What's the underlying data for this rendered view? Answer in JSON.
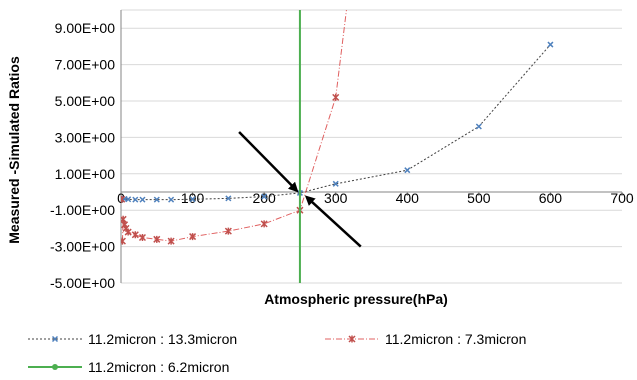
{
  "chart_data": {
    "type": "scatter",
    "title": "",
    "xlabel": "Atmospheric pressure(hPa)",
    "ylabel": "Measured -Simulated Ratios",
    "xlim": [
      0,
      700
    ],
    "ylim": [
      -5,
      10
    ],
    "x_ticks": [
      "0",
      "100",
      "200",
      "300",
      "400",
      "500",
      "600",
      "700"
    ],
    "y_ticks": [
      "-5.00E+00",
      "-3.00E+00",
      "-1.00E+00",
      "1.00E+00",
      "3.00E+00",
      "5.00E+00",
      "7.00E+00",
      "9.00E+00"
    ],
    "grid": true,
    "legend_position": "bottom",
    "series": [
      {
        "name": "11.2micron : 13.3micron",
        "color": "#4f81bd",
        "line_color": "#404040",
        "marker": "x",
        "x": [
          1,
          5,
          10,
          20,
          30,
          50,
          70,
          100,
          150,
          200,
          250,
          300,
          400,
          500,
          600
        ],
        "y": [
          -0.4,
          -0.38,
          -0.4,
          -0.42,
          -0.42,
          -0.42,
          -0.42,
          -0.4,
          -0.35,
          -0.25,
          -0.05,
          0.45,
          1.2,
          3.6,
          8.1
        ]
      },
      {
        "name": "11.2micron : 7.3micron",
        "color": "#c0504d",
        "line_color": "#e06060",
        "marker": "*",
        "x": [
          1,
          2,
          3,
          5,
          7,
          10,
          20,
          30,
          50,
          70,
          100,
          150,
          200,
          250,
          300,
          315
        ],
        "y": [
          -0.4,
          -2.7,
          -1.5,
          -1.8,
          -2.0,
          -2.2,
          -2.35,
          -2.5,
          -2.6,
          -2.7,
          -2.45,
          -2.15,
          -1.75,
          -1.0,
          5.2,
          10.0
        ]
      },
      {
        "name": "11.2micron : 6.2micron",
        "color": "#4caf50",
        "marker": "circle",
        "x": [
          250,
          250
        ],
        "y": [
          -5,
          10
        ]
      }
    ],
    "annotations": [
      {
        "type": "arrow",
        "from": [
          165,
          3.3
        ],
        "to": [
          245,
          0.1
        ]
      },
      {
        "type": "arrow",
        "from": [
          335,
          -3.0
        ],
        "to": [
          260,
          -0.3
        ]
      }
    ]
  }
}
